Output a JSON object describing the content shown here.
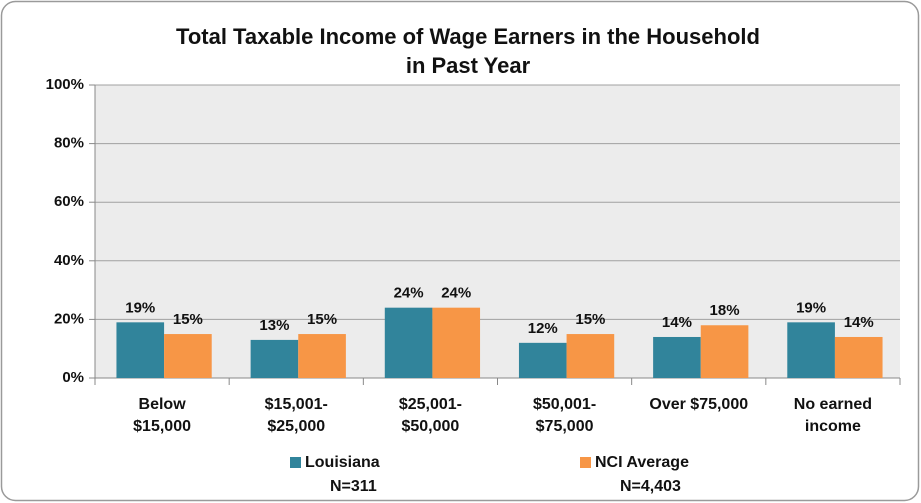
{
  "chart_data": {
    "type": "bar",
    "title": [
      "Total Taxable Income of Wage Earners in the Household",
      "in Past Year"
    ],
    "categories": [
      [
        "Below",
        "$15,000"
      ],
      [
        "$15,001-",
        "$25,000"
      ],
      [
        "$25,001-",
        "$50,000"
      ],
      [
        "$50,001-",
        "$75,000"
      ],
      [
        "Over $75,000"
      ],
      [
        "No earned",
        "income"
      ]
    ],
    "series": [
      {
        "name": "Louisiana",
        "sample_size": "N=311",
        "color": "#31849b",
        "values": [
          19,
          13,
          24,
          12,
          14,
          19
        ],
        "value_labels": [
          "19%",
          "13%",
          "24%",
          "12%",
          "14%",
          "19%"
        ]
      },
      {
        "name": "NCI Average",
        "sample_size": "N=4,403",
        "color": "#f79646",
        "values": [
          15,
          15,
          24,
          15,
          18,
          14
        ],
        "value_labels": [
          "15%",
          "15%",
          "24%",
          "15%",
          "18%",
          "14%"
        ]
      }
    ],
    "ylim": [
      0,
      100
    ],
    "yticks": [
      {
        "value": 0,
        "label": "0%"
      },
      {
        "value": 20,
        "label": "20%"
      },
      {
        "value": 40,
        "label": "40%"
      },
      {
        "value": 60,
        "label": "60%"
      },
      {
        "value": 80,
        "label": "80%"
      },
      {
        "value": 100,
        "label": "100%"
      }
    ],
    "grid": true,
    "legend": "bottom"
  }
}
